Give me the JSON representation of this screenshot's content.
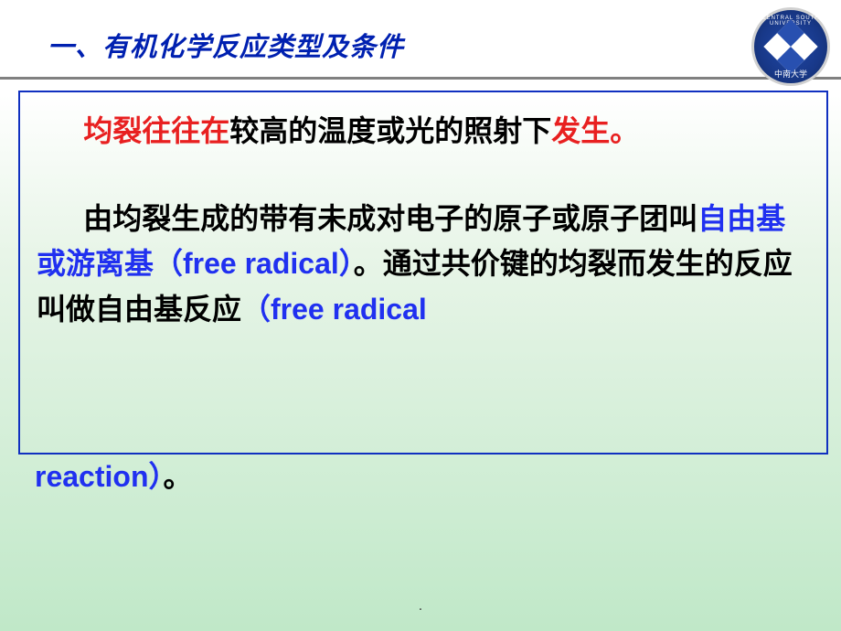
{
  "header": {
    "title": "一、有机化学反应类型及条件",
    "title_color": "#0020b0",
    "title_fontsize": 29
  },
  "logo": {
    "text_top": "CENTRAL SOUTH UNIVERSITY",
    "text_bottom": "中南大学",
    "outer_color": "#183888",
    "inner_color": "#2850b0"
  },
  "content": {
    "p1_red": "均裂往往在",
    "p1_black1": "较高的温度或光的照射下",
    "p1_red2": "发生。",
    "p2_black1": "由均裂生成的",
    "p2_black2": "带有未成",
    "p2_black3": "对电子的原子或原子团叫",
    "p2_blue1": "自由基或游离基（free radical）",
    "p2_black4": "。通过共价键的均裂而发生的反应叫做自由基反应",
    "p2_blue2": "（free radical reaction）",
    "p2_black5": "。"
  },
  "styling": {
    "body_width": 920,
    "body_height": 690,
    "bg_gradient_start": "#ffffff",
    "bg_gradient_end": "#c0e8c8",
    "content_font_size": 32,
    "red_color": "#e82020",
    "blue_color": "#2030f0",
    "black_color": "#000000",
    "box_border_color": "#1030c0",
    "hr_color": "#808080"
  },
  "footer": {
    "dot": "."
  }
}
